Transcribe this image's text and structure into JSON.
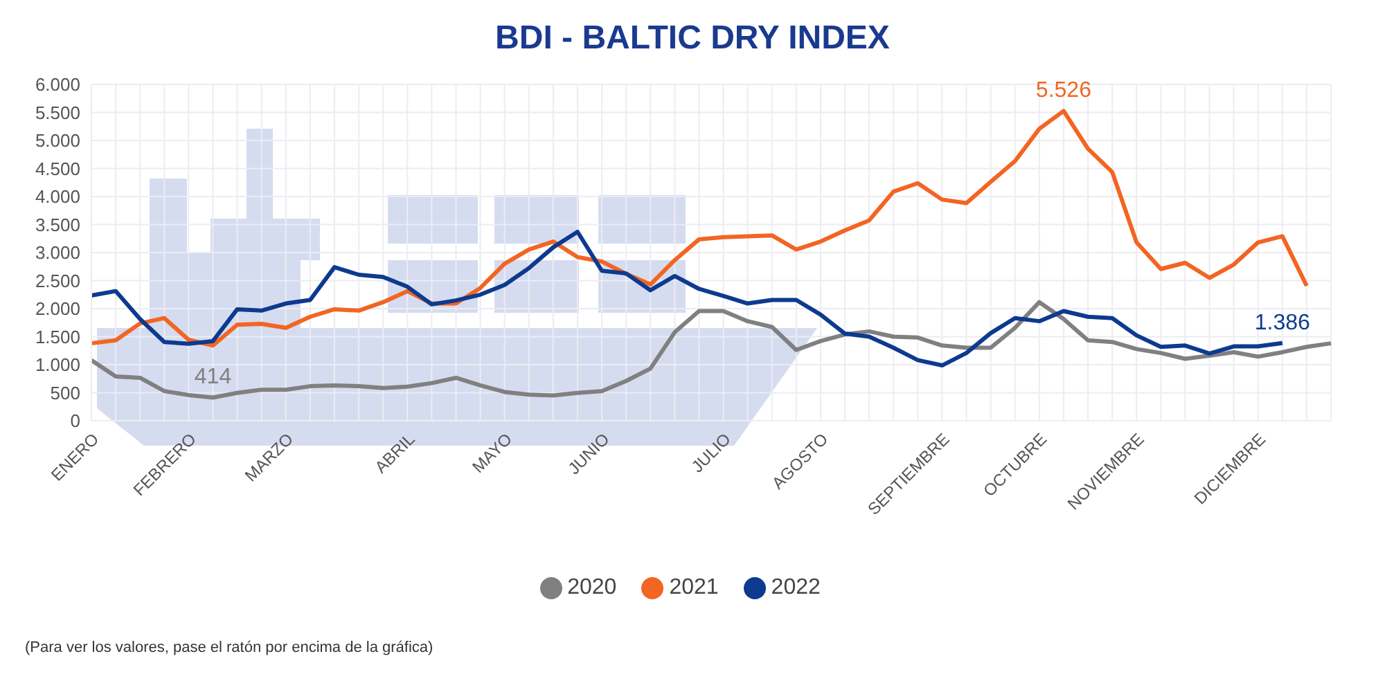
{
  "chart_data": {
    "type": "line",
    "title": "BDI - BALTIC DRY INDEX",
    "categories": [
      "ENERO",
      null,
      null,
      null,
      "FEBRERO",
      null,
      null,
      null,
      "MARZO",
      null,
      null,
      null,
      null,
      "ABRIL",
      null,
      null,
      null,
      "MAYO",
      null,
      null,
      null,
      "JUNIO",
      null,
      null,
      null,
      null,
      "JULIO",
      null,
      null,
      null,
      "AGOSTO",
      null,
      null,
      null,
      null,
      "SEPTIEMBRE",
      null,
      null,
      null,
      "OCTUBRE",
      null,
      null,
      null,
      "NOVIEMBRE",
      null,
      null,
      null,
      null,
      "DICIEMBRE",
      null,
      null,
      null
    ],
    "series": [
      {
        "name": "2020",
        "color": "#808080",
        "values": [
          1081,
          789,
          766,
          529,
          458,
          414,
          497,
          552,
          552,
          616,
          631,
          616,
          584,
          608,
          671,
          766,
          631,
          513,
          466,
          450,
          497,
          529,
          710,
          931,
          1579,
          1957,
          1957,
          1776,
          1673,
          1263,
          1421,
          1539,
          1594,
          1500,
          1484,
          1342,
          1302,
          1302,
          1657,
          2115,
          1815,
          1436,
          1405,
          1279,
          1208,
          1105,
          1160,
          1223,
          1144,
          1223,
          1318,
          1381
        ],
        "value_labels": [
          null,
          null,
          null,
          null,
          null,
          "414",
          null,
          null,
          null,
          null,
          null,
          null,
          null,
          null,
          null,
          null,
          null,
          null,
          null,
          null,
          null,
          null,
          null,
          null,
          null,
          null,
          null,
          null,
          null,
          null,
          null,
          null,
          null,
          null,
          null,
          null,
          null,
          null,
          null,
          null,
          null,
          null,
          null,
          null,
          null,
          null,
          null,
          null,
          null,
          null,
          null,
          null
        ]
      },
      {
        "name": "2021",
        "color": "#f26522",
        "values": [
          1381,
          1436,
          1736,
          1831,
          1444,
          1342,
          1713,
          1729,
          1657,
          1855,
          1989,
          1965,
          2115,
          2313,
          2092,
          2092,
          2368,
          2802,
          3054,
          3197,
          2920,
          2841,
          2620,
          2431,
          2865,
          3236,
          3275,
          3291,
          3307,
          3054,
          3197,
          3394,
          3575,
          4088,
          4238,
          3946,
          3883,
          4262,
          4633,
          5209,
          5526,
          4854,
          4436,
          3181,
          2707,
          2818,
          2549,
          2786,
          3181,
          3291,
          2407,
          null
        ],
        "value_labels": [
          null,
          null,
          null,
          null,
          null,
          null,
          null,
          null,
          null,
          null,
          null,
          null,
          null,
          null,
          null,
          null,
          null,
          null,
          null,
          null,
          null,
          null,
          null,
          null,
          null,
          null,
          null,
          null,
          null,
          null,
          null,
          null,
          null,
          null,
          null,
          null,
          null,
          null,
          null,
          null,
          "5.526",
          null,
          null,
          null,
          null,
          null,
          null,
          null,
          null,
          null,
          null,
          null
        ]
      },
      {
        "name": "2022",
        "color": "#0d3a8f",
        "values": [
          2234,
          2313,
          1815,
          1405,
          1373,
          1421,
          1989,
          1965,
          2092,
          2155,
          2739,
          2605,
          2565,
          2391,
          2076,
          2147,
          2249,
          2423,
          2723,
          3094,
          3370,
          2676,
          2628,
          2328,
          2581,
          2352,
          2226,
          2092,
          2155,
          2155,
          1894,
          1555,
          1500,
          1302,
          1081,
          987,
          1208,
          1563,
          1831,
          1776,
          1957,
          1855,
          1831,
          1523,
          1318,
          1342,
          1200,
          1326,
          1326,
          1386,
          null,
          null
        ],
        "value_labels": [
          null,
          null,
          null,
          null,
          null,
          null,
          null,
          null,
          null,
          null,
          null,
          null,
          null,
          null,
          null,
          null,
          null,
          null,
          null,
          null,
          null,
          null,
          null,
          null,
          null,
          null,
          null,
          null,
          null,
          null,
          null,
          null,
          null,
          null,
          null,
          null,
          null,
          null,
          null,
          null,
          null,
          null,
          null,
          null,
          null,
          null,
          null,
          null,
          null,
          "1.386",
          null,
          null
        ]
      }
    ],
    "ylim": [
      0,
      6000
    ],
    "yticks": [
      {
        "value": 0,
        "label": "0"
      },
      {
        "value": 500,
        "label": "500"
      },
      {
        "value": 1000,
        "label": "1.000"
      },
      {
        "value": 1500,
        "label": "1.500"
      },
      {
        "value": 2000,
        "label": "2.000"
      },
      {
        "value": 2500,
        "label": "2.500"
      },
      {
        "value": 3000,
        "label": "3.000"
      },
      {
        "value": 3500,
        "label": "3.500"
      },
      {
        "value": 4000,
        "label": "4.000"
      },
      {
        "value": 4500,
        "label": "4.500"
      },
      {
        "value": 5000,
        "label": "5.000"
      },
      {
        "value": 5500,
        "label": "5.500"
      },
      {
        "value": 6000,
        "label": "6.000"
      }
    ],
    "grid": true,
    "legend": "bottom",
    "marker": "none",
    "line_style": "solid",
    "annotations": [
      "(Para ver los valores, pase el ratón por encima de la gráfica)"
    ]
  }
}
